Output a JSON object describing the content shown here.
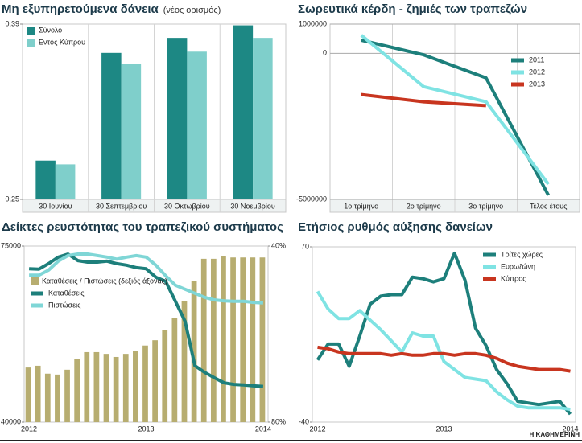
{
  "chart_data": [
    {
      "type": "bar",
      "title": "Μη εξυπηρετούμενα δάνεια",
      "subtitle": "(νέος ορισμός)",
      "categories": [
        "30 Ιουνίου",
        "30 Σεπτεμβρίου",
        "30 Οκτωβρίου",
        "30 Νοεμβρίου"
      ],
      "series": [
        {
          "name": "Σύνολο",
          "color": "#1d8884",
          "values": [
            0.281,
            0.367,
            0.379,
            0.389
          ]
        },
        {
          "name": "Εντός Κύπρου",
          "color": "#7fcfcb",
          "values": [
            0.278,
            0.358,
            0.368,
            0.379
          ]
        }
      ],
      "ylim": [
        0.25,
        0.39
      ],
      "yticks": [
        {
          "value": 0.39,
          "label": "0,39"
        },
        {
          "value": 0.25,
          "label": "0,25"
        }
      ],
      "legend": "upper left"
    },
    {
      "type": "line",
      "title": "Σωρευτικά κέρδη - ζημιές των τραπεζών",
      "categories": [
        "1ο τρίμηνο",
        "2ο τρίμηνο",
        "3ο τρίμηνο",
        "Τέλος έτους"
      ],
      "series": [
        {
          "name": "2011",
          "color": "#1d7f7b",
          "values": [
            450000,
            -50000,
            -840000,
            -4860000
          ]
        },
        {
          "name": "2012",
          "color": "#7fe3e3",
          "values": [
            620000,
            -1140000,
            -1660000,
            -4480000
          ]
        },
        {
          "name": "2013",
          "color": "#c8351f",
          "values": [
            -1410000,
            -1660000,
            -1790000,
            null
          ]
        }
      ],
      "ylim": [
        -5000000,
        1000000
      ],
      "yticks": [
        1000000,
        0,
        -5000000
      ],
      "grid": true,
      "legend": "center right"
    },
    {
      "type": "combo",
      "title": "Δείκτες ρευστότητας του τραπεζικού συστήματος",
      "categories": [
        "2012",
        null,
        null,
        null,
        null,
        null,
        null,
        null,
        null,
        null,
        null,
        null,
        "2013",
        null,
        null,
        null,
        null,
        null,
        null,
        null,
        null,
        null,
        null,
        null,
        "2014"
      ],
      "series": [
        {
          "name": "Καταθέσεις / Πιστώσεις (δεξιός άξονας)",
          "type": "bar",
          "axis": "y2",
          "color": "#b7ad70",
          "values": [
            67.6,
            67.2,
            69.0,
            69.2,
            68.1,
            65.6,
            64.1,
            64.1,
            64.5,
            65.2,
            64.5,
            63.9,
            62.6,
            61.4,
            59.0,
            56.4,
            52.6,
            48.0,
            42.9,
            42.9,
            42.2,
            42.6,
            42.6,
            42.6,
            42.6
          ]
        },
        {
          "name": "Καταθέσεις",
          "type": "line",
          "color": "#1d7f7b",
          "values": [
            70500,
            70400,
            71500,
            72800,
            73400,
            72100,
            71800,
            71800,
            72000,
            71500,
            71200,
            70700,
            70500,
            68800,
            68000,
            64000,
            60000,
            51200,
            49900,
            48800,
            47800,
            47500,
            47400,
            47200,
            47100
          ]
        },
        {
          "name": "Πιστώσεις",
          "type": "line",
          "color": "#7fd6d6",
          "values": [
            69200,
            69200,
            70200,
            72000,
            73100,
            73400,
            73400,
            73100,
            72800,
            72400,
            72800,
            73100,
            72800,
            71200,
            69100,
            67200,
            66400,
            65600,
            64800,
            64300,
            64100,
            64000,
            64000,
            63800,
            63700
          ]
        }
      ],
      "ylim": [
        40000,
        75000
      ],
      "yticks": [
        75000,
        40000
      ],
      "y2lim": [
        80,
        40
      ],
      "y2ticks": [
        {
          "value": 40,
          "label": "40%"
        },
        {
          "value": 80,
          "label": "80%"
        }
      ],
      "legend": "center left"
    },
    {
      "type": "line",
      "title": "Ετήσιος ρυθμός αύξησης δανείων",
      "categories": [
        "2012",
        null,
        null,
        null,
        null,
        null,
        null,
        null,
        null,
        null,
        null,
        null,
        "2013",
        null,
        null,
        null,
        null,
        null,
        null,
        null,
        null,
        null,
        null,
        null,
        "2014"
      ],
      "series": [
        {
          "name": "Τρίτες χώρες",
          "color": "#1d7f7b",
          "values": [
            -1,
            9,
            9,
            -5,
            14,
            34,
            39,
            40,
            40,
            51,
            50,
            48,
            50,
            66,
            49,
            19,
            8,
            -7,
            -16,
            -27,
            -28,
            -29,
            -28,
            -27,
            -35
          ]
        },
        {
          "name": "Ευρωζώνη",
          "color": "#7fe3e3",
          "values": [
            42,
            31,
            25,
            25,
            30,
            24,
            18,
            11,
            4,
            16,
            14,
            14,
            -2,
            -7,
            -12,
            -13,
            -14,
            -21,
            -26,
            -30,
            -31,
            -31,
            -31,
            -31,
            -32
          ]
        },
        {
          "name": "Κύπρος",
          "color": "#c8351f",
          "values": [
            7,
            6,
            4,
            3,
            3,
            3,
            3,
            2,
            3,
            2,
            2,
            3,
            3,
            2,
            3,
            3,
            2,
            0,
            -3,
            -5,
            -6,
            -7,
            -7,
            -7,
            -8
          ]
        }
      ],
      "ylim": [
        -40,
        70
      ],
      "yticks": [
        70,
        -40
      ],
      "legend": "upper right"
    }
  ],
  "source": "Η ΚΑΘΗΜΕΡΙΝΗ"
}
